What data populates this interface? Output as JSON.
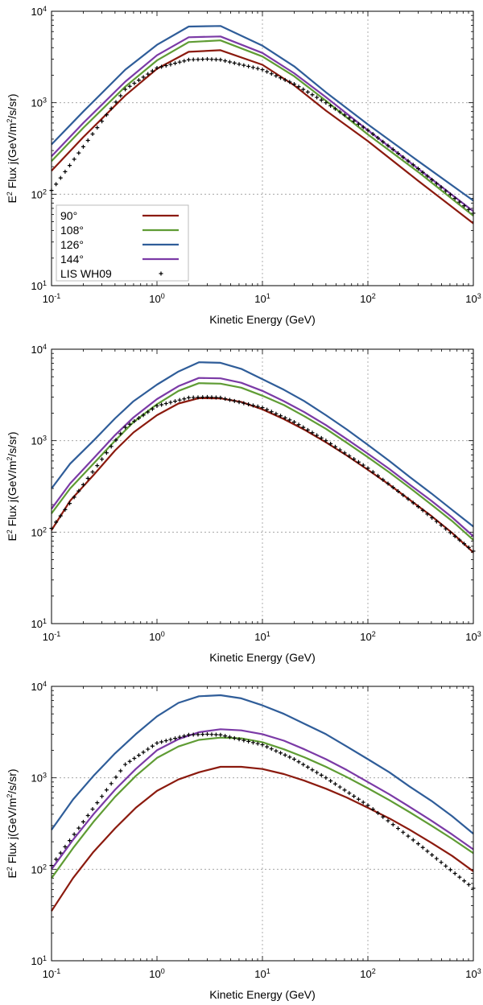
{
  "chart_data": [
    {
      "type": "line",
      "scale": "log-log",
      "title": "",
      "xlabel": "Kinetic Energy (GeV)",
      "ylabel": "E^2 Flux j(GeV/m^2/s/sr)",
      "xlim": [
        0.1,
        1000
      ],
      "ylim": [
        10,
        10000
      ],
      "x_ticks": [
        "10^-1",
        "10^0",
        "10^1",
        "10^2",
        "10^3"
      ],
      "y_ticks": [
        "10^1",
        "10^2",
        "10^3",
        "10^4"
      ],
      "grid": true,
      "legend": "lower-left",
      "series": [
        {
          "name": "90°",
          "color": "#8b1a0e",
          "style": "line",
          "x": [
            0.1,
            0.2,
            0.5,
            1,
            2,
            4,
            10,
            20,
            40,
            100,
            300,
            1000
          ],
          "y": [
            180,
            420,
            1200,
            2350,
            3600,
            3750,
            2600,
            1550,
            820,
            380,
            140,
            48
          ]
        },
        {
          "name": "108°",
          "color": "#5f9c34",
          "style": "line",
          "x": [
            0.1,
            0.2,
            0.5,
            1,
            2,
            4,
            10,
            20,
            40,
            100,
            300,
            1000
          ],
          "y": [
            230,
            530,
            1500,
            2900,
            4600,
            4800,
            3200,
            1950,
            1050,
            450,
            175,
            58
          ]
        },
        {
          "name": "126°",
          "color": "#2f5d99",
          "style": "line",
          "x": [
            0.1,
            0.2,
            0.5,
            1,
            2,
            4,
            10,
            20,
            40,
            100,
            300,
            1000
          ],
          "y": [
            350,
            800,
            2300,
            4300,
            6800,
            6900,
            4200,
            2500,
            1300,
            580,
            230,
            85
          ]
        },
        {
          "name": "144°",
          "color": "#7b3aa6",
          "style": "line",
          "x": [
            0.1,
            0.2,
            0.5,
            1,
            2,
            4,
            10,
            20,
            40,
            100,
            300,
            1000
          ],
          "y": [
            260,
            600,
            1700,
            3300,
            5200,
            5300,
            3500,
            2100,
            1150,
            500,
            190,
            65
          ]
        },
        {
          "name": "LIS WH09",
          "color": "#000000",
          "style": "marker",
          "x": [
            0.1,
            0.2,
            0.5,
            1,
            2,
            3,
            4,
            10,
            20,
            40,
            100,
            300,
            1000
          ],
          "y": [
            110,
            330,
            1400,
            2400,
            2950,
            3000,
            2950,
            2300,
            1600,
            1000,
            500,
            190,
            62
          ]
        }
      ]
    },
    {
      "type": "line",
      "scale": "log-log",
      "title": "",
      "xlabel": "Kinetic Energy (GeV)",
      "ylabel": "E^2 Flux j(GeV/m^2/s/sr)",
      "xlim": [
        0.1,
        1000
      ],
      "ylim": [
        10,
        10000
      ],
      "x_ticks": [
        "10^-1",
        "10^0",
        "10^1",
        "10^2",
        "10^3"
      ],
      "y_ticks": [
        "10^1",
        "10^2",
        "10^3",
        "10^4"
      ],
      "grid": true,
      "series": [
        {
          "name": "90°",
          "color": "#8b1a0e",
          "style": "line",
          "x": [
            0.1,
            0.15,
            0.25,
            0.4,
            0.6,
            1,
            1.6,
            2.5,
            4,
            6.3,
            10,
            16,
            25,
            40,
            63,
            100,
            160,
            250,
            400,
            630,
            1000
          ],
          "y": [
            105,
            220,
            420,
            780,
            1230,
            1900,
            2550,
            2920,
            2900,
            2650,
            2200,
            1720,
            1320,
            960,
            690,
            480,
            330,
            225,
            150,
            98,
            60
          ]
        },
        {
          "name": "108°",
          "color": "#5f9c34",
          "style": "line",
          "x": [
            0.1,
            0.15,
            0.25,
            0.4,
            0.6,
            1,
            1.6,
            2.5,
            4,
            6.3,
            10,
            16,
            25,
            40,
            63,
            100,
            160,
            250,
            400,
            630,
            1000
          ],
          "y": [
            160,
            300,
            560,
            1000,
            1600,
            2500,
            3500,
            4250,
            4200,
            3800,
            3100,
            2450,
            1850,
            1350,
            950,
            660,
            450,
            305,
            200,
            132,
            82
          ]
        },
        {
          "name": "126°",
          "color": "#2f5d99",
          "style": "line",
          "x": [
            0.1,
            0.15,
            0.25,
            0.4,
            0.6,
            1,
            1.6,
            2.5,
            4,
            6.3,
            10,
            16,
            25,
            40,
            63,
            100,
            160,
            250,
            400,
            630,
            1000
          ],
          "y": [
            300,
            560,
            1000,
            1750,
            2700,
            4100,
            5700,
            7200,
            7100,
            6100,
            4700,
            3600,
            2700,
            1900,
            1330,
            900,
            600,
            400,
            265,
            175,
            115
          ]
        },
        {
          "name": "144°",
          "color": "#7b3aa6",
          "style": "line",
          "x": [
            0.1,
            0.15,
            0.25,
            0.4,
            0.6,
            1,
            1.6,
            2.5,
            4,
            6.3,
            10,
            16,
            25,
            40,
            63,
            100,
            160,
            250,
            400,
            630,
            1000
          ],
          "y": [
            180,
            340,
            640,
            1150,
            1800,
            2850,
            3950,
            4850,
            4800,
            4300,
            3500,
            2700,
            2050,
            1480,
            1040,
            720,
            490,
            330,
            220,
            145,
            90
          ]
        },
        {
          "name": "LIS WH09",
          "color": "#000000",
          "style": "marker",
          "x": [
            0.1,
            0.2,
            0.5,
            1,
            2,
            3,
            4,
            10,
            20,
            40,
            100,
            300,
            1000
          ],
          "y": [
            110,
            330,
            1400,
            2400,
            2950,
            3000,
            2950,
            2300,
            1600,
            1000,
            500,
            190,
            62
          ]
        }
      ]
    },
    {
      "type": "line",
      "scale": "log-log",
      "title": "",
      "xlabel": "Kinetic Energy (GeV)",
      "ylabel": "E^2 Flux j(GeV/m^2/s/sr)",
      "xlim": [
        0.1,
        1000
      ],
      "ylim": [
        10,
        10000
      ],
      "x_ticks": [
        "10^-1",
        "10^0",
        "10^1",
        "10^2",
        "10^3"
      ],
      "y_ticks": [
        "10^1",
        "10^2",
        "10^3",
        "10^4"
      ],
      "grid": true,
      "series": [
        {
          "name": "90°",
          "color": "#8b1a0e",
          "style": "line",
          "x": [
            0.1,
            0.16,
            0.25,
            0.4,
            0.63,
            1,
            1.6,
            2.5,
            4,
            6.3,
            10,
            16,
            25,
            40,
            63,
            100,
            160,
            250,
            400,
            630,
            1000
          ],
          "y": [
            35,
            80,
            155,
            280,
            470,
            720,
            960,
            1150,
            1320,
            1320,
            1250,
            1100,
            930,
            760,
            610,
            470,
            360,
            270,
            195,
            140,
            95
          ]
        },
        {
          "name": "108°",
          "color": "#5f9c34",
          "style": "line",
          "x": [
            0.1,
            0.16,
            0.25,
            0.4,
            0.63,
            1,
            1.6,
            2.5,
            4,
            6.3,
            10,
            16,
            25,
            40,
            63,
            100,
            160,
            250,
            400,
            630,
            1000
          ],
          "y": [
            80,
            170,
            330,
            620,
            1050,
            1650,
            2200,
            2600,
            2750,
            2700,
            2450,
            2050,
            1680,
            1320,
            1020,
            770,
            570,
            420,
            300,
            215,
            150
          ]
        },
        {
          "name": "126°",
          "color": "#2f5d99",
          "style": "line",
          "x": [
            0.1,
            0.16,
            0.25,
            0.4,
            0.63,
            1,
            1.6,
            2.5,
            4,
            6.3,
            10,
            16,
            25,
            40,
            63,
            100,
            160,
            250,
            400,
            630,
            1000
          ],
          "y": [
            270,
            580,
            1050,
            1850,
            3000,
            4700,
            6600,
            7800,
            8000,
            7400,
            6200,
            5000,
            3900,
            3000,
            2200,
            1600,
            1150,
            800,
            560,
            380,
            245
          ]
        },
        {
          "name": "144°",
          "color": "#7b3aa6",
          "style": "line",
          "x": [
            0.1,
            0.16,
            0.25,
            0.4,
            0.63,
            1,
            1.6,
            2.5,
            4,
            6.3,
            10,
            16,
            25,
            40,
            63,
            100,
            160,
            250,
            400,
            630,
            1000
          ],
          "y": [
            100,
            210,
            400,
            740,
            1250,
            2000,
            2650,
            3150,
            3400,
            3300,
            3000,
            2550,
            2050,
            1600,
            1220,
            900,
            660,
            480,
            340,
            240,
            165
          ]
        },
        {
          "name": "LIS WH09",
          "color": "#000000",
          "style": "marker",
          "x": [
            0.1,
            0.2,
            0.5,
            1,
            2,
            3,
            4,
            10,
            20,
            40,
            100,
            300,
            1000
          ],
          "y": [
            110,
            330,
            1400,
            2400,
            2950,
            3000,
            2950,
            2300,
            1600,
            1000,
            500,
            190,
            62
          ]
        }
      ]
    }
  ]
}
